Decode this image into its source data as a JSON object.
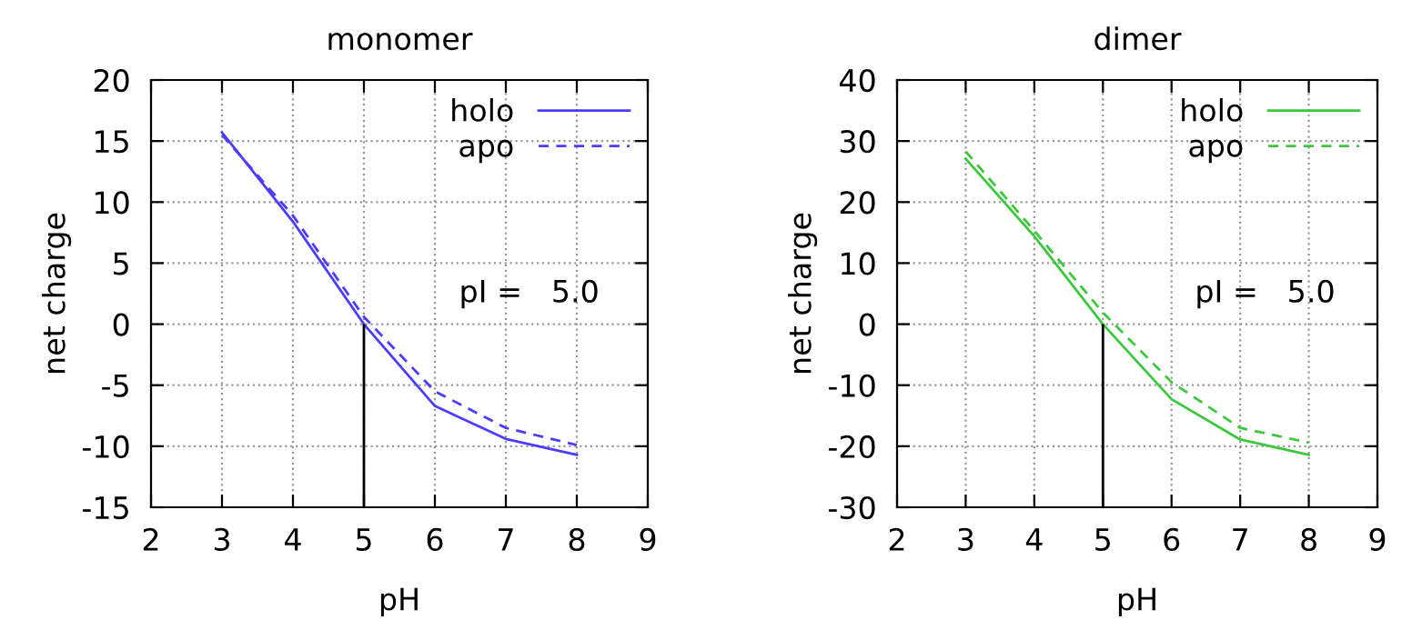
{
  "chart_data": [
    {
      "type": "line",
      "title": "monomer",
      "xlabel": "pH",
      "ylabel": "net charge",
      "x": [
        3,
        4,
        5,
        6,
        7,
        8
      ],
      "xlim": [
        2,
        9
      ],
      "xticks": [
        2,
        3,
        4,
        5,
        6,
        7,
        8,
        9
      ],
      "ylim": [
        -15,
        20
      ],
      "yticks": [
        -15,
        -10,
        -5,
        0,
        5,
        10,
        15,
        20
      ],
      "grid": true,
      "legend": "top right",
      "series": [
        {
          "name": "holo",
          "color": "#4b3cff",
          "line_style": "solid",
          "values": [
            15.7,
            8.4,
            0.0,
            -6.7,
            -9.4,
            -10.7
          ]
        },
        {
          "name": "apo",
          "color": "#4b3cff",
          "line_style": "dashed",
          "values": [
            15.5,
            8.9,
            0.6,
            -5.5,
            -8.5,
            -9.9
          ]
        }
      ],
      "ref_lines": [
        {
          "axis": "x",
          "value": 5.0,
          "color": "#000000"
        }
      ],
      "annotations": [
        "pI =   5.0"
      ]
    },
    {
      "type": "line",
      "title": "dimer",
      "xlabel": "pH",
      "ylabel": "net charge",
      "x": [
        3,
        4,
        5,
        6,
        7,
        8
      ],
      "xlim": [
        2,
        9
      ],
      "xticks": [
        2,
        3,
        4,
        5,
        6,
        7,
        8,
        9
      ],
      "ylim": [
        -30,
        40
      ],
      "yticks": [
        -30,
        -20,
        -10,
        0,
        10,
        20,
        30,
        40
      ],
      "grid": true,
      "legend": "top right",
      "series": [
        {
          "name": "holo",
          "color": "#3cc83c",
          "line_style": "solid",
          "values": [
            27.1,
            14.4,
            0.0,
            -12.3,
            -18.9,
            -21.4
          ]
        },
        {
          "name": "apo",
          "color": "#3cc83c",
          "line_style": "dashed",
          "values": [
            28.3,
            15.3,
            1.9,
            -9.5,
            -17.0,
            -19.4
          ]
        }
      ],
      "ref_lines": [
        {
          "axis": "x",
          "value": 5.0,
          "color": "#000000"
        }
      ],
      "annotations": [
        "pI =   5.0"
      ]
    }
  ]
}
